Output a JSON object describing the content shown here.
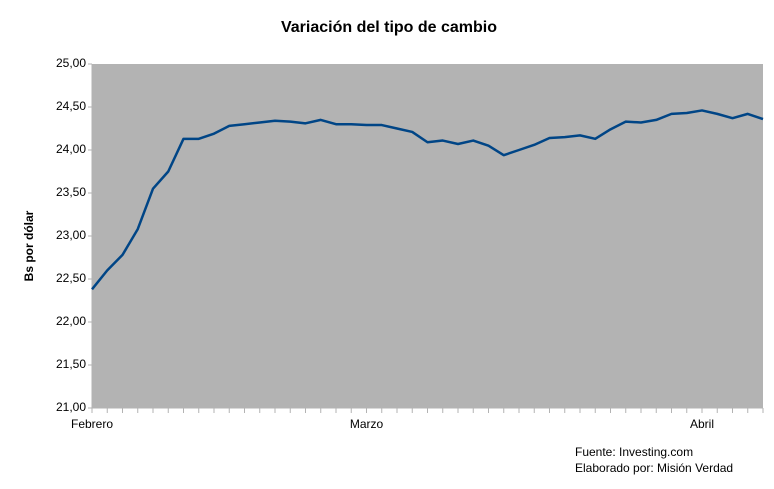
{
  "chart_data": {
    "type": "line",
    "title": "Variación del tipo de cambio",
    "y_label": "Bs por dólar",
    "source": "Fuente: Investing.com",
    "credit": "Elaborado por: Misión Verdad",
    "categories": [
      "Febrero",
      null,
      null,
      null,
      null,
      null,
      null,
      null,
      null,
      null,
      null,
      null,
      null,
      null,
      null,
      null,
      null,
      null,
      "Marzo",
      null,
      null,
      null,
      null,
      null,
      null,
      null,
      null,
      null,
      null,
      null,
      null,
      null,
      null,
      null,
      null,
      null,
      null,
      null,
      null,
      null,
      "Abril",
      null,
      null,
      null,
      null
    ],
    "values": [
      22.38,
      22.6,
      22.78,
      23.08,
      23.55,
      23.75,
      24.13,
      24.13,
      24.19,
      24.28,
      24.3,
      24.32,
      24.34,
      24.33,
      24.31,
      24.35,
      24.3,
      24.3,
      24.29,
      24.29,
      24.25,
      24.21,
      24.09,
      24.11,
      24.07,
      24.11,
      24.05,
      23.94,
      24.0,
      24.06,
      24.14,
      24.15,
      24.17,
      24.13,
      24.24,
      24.33,
      24.32,
      24.35,
      24.42,
      24.43,
      24.46,
      24.42,
      24.37,
      24.42,
      24.36
    ],
    "color": "#004586",
    "background": "#b3b3b3",
    "ylim": [
      21,
      25
    ],
    "yticks": [
      {
        "value": 21,
        "label": "21,00"
      },
      {
        "value": 21.5,
        "label": "21,50"
      },
      {
        "value": 22,
        "label": "22,00"
      },
      {
        "value": 22.5,
        "label": "22,50"
      },
      {
        "value": 23,
        "label": "23,00"
      },
      {
        "value": 23.5,
        "label": "23,50"
      },
      {
        "value": 24,
        "label": "24,00"
      },
      {
        "value": 24.5,
        "label": "24,50"
      },
      {
        "value": 25,
        "label": "25,00"
      }
    ]
  }
}
